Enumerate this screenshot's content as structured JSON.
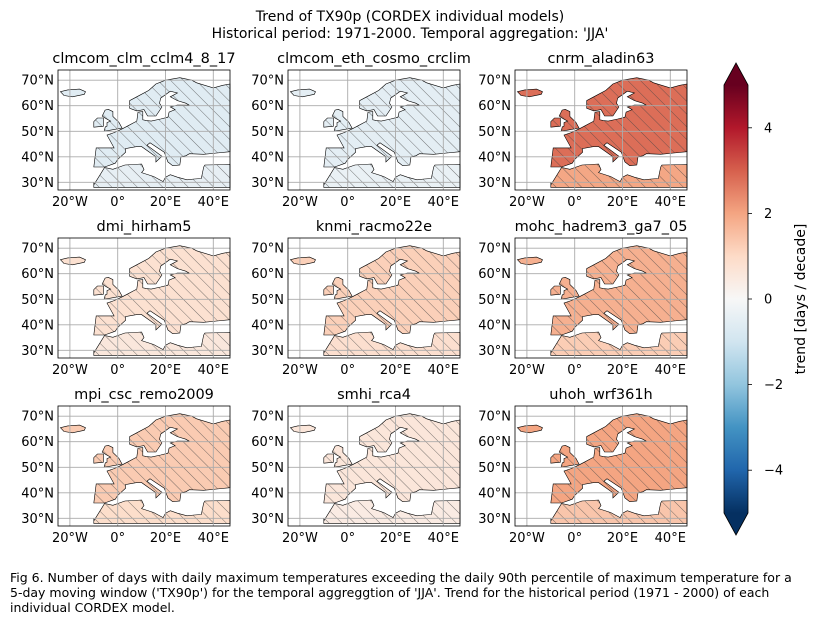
{
  "chart_data": {
    "type": "heatmap",
    "title_line1": "Trend of TX90p (CORDEX individual models)",
    "title_line2": "Historical period: 1971-2000. Temporal aggregation: 'JJA'",
    "lat_ticks": [
      "70°N",
      "60°N",
      "50°N",
      "40°N",
      "30°N"
    ],
    "lon_ticks": [
      "20°W",
      "0°",
      "20°E",
      "40°E"
    ],
    "colorbar": {
      "label": "trend [days / decade]",
      "ticks": [
        "4",
        "2",
        "0",
        "−2",
        "−4"
      ],
      "range": [
        -5,
        5
      ],
      "colormap": "RdBu_r"
    },
    "panels": [
      {
        "name": "clmcom_clm_cclm4_8_17",
        "mean_trend": -0.6
      },
      {
        "name": "clmcom_eth_cosmo_crclim",
        "mean_trend": -0.5
      },
      {
        "name": "cnrm_aladin63",
        "mean_trend": 2.8
      },
      {
        "name": "dmi_hirham5",
        "mean_trend": 0.8
      },
      {
        "name": "knmi_racmo22e",
        "mean_trend": 1.2
      },
      {
        "name": "mohc_hadrem3_ga7_05",
        "mean_trend": 1.8
      },
      {
        "name": "mpi_csc_remo2009",
        "mean_trend": 1.3
      },
      {
        "name": "smhi_rca4",
        "mean_trend": 0.6
      },
      {
        "name": "uhoh_wrf361h",
        "mean_trend": 2.0
      }
    ]
  },
  "caption": "Fig 6. Number of days with daily maximum temperatures exceeding the daily 90th percentile of maximum temperature for a 5-day moving window ('TX90p') for the temporal aggreggtion of 'JJA'. Trend for the historical period (1971 - 2000) of each individual CORDEX model."
}
